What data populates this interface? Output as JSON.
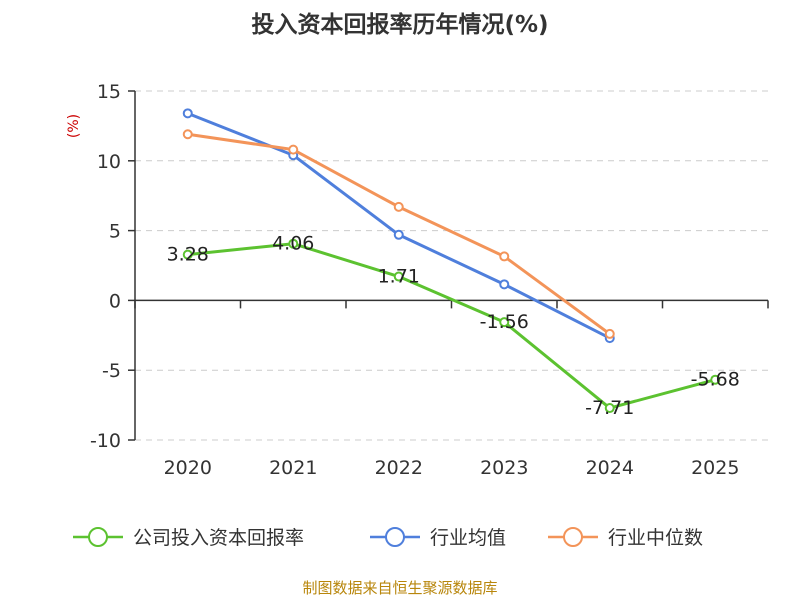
{
  "chart_data": {
    "type": "line",
    "title": "投入资本回报率历年情况(%)",
    "ylabel": "(%)",
    "xlabel": "",
    "categories": [
      "2020",
      "2021",
      "2022",
      "2023",
      "2024",
      "2025"
    ],
    "ylim": [
      -10,
      15
    ],
    "yticks": [
      15,
      10,
      5,
      0,
      -5,
      -10
    ],
    "grid": true,
    "legend_position": "bottom",
    "series": [
      {
        "name": "公司投入资本回报率",
        "color": "#5cc230",
        "values": [
          3.28,
          4.06,
          1.71,
          -1.56,
          -7.71,
          -5.68
        ],
        "labels": [
          "3.28",
          "4.06",
          "1.71",
          "-1.56",
          "-7.71",
          "-5.68"
        ]
      },
      {
        "name": "行业均值",
        "color": "#4f7fdc",
        "values": [
          13.4,
          10.4,
          4.7,
          1.15,
          -2.7,
          null
        ]
      },
      {
        "name": "行业中位数",
        "color": "#f39459",
        "values": [
          11.9,
          10.8,
          6.7,
          3.15,
          -2.4,
          null
        ]
      }
    ]
  },
  "source_text": "制图数据来自恒生聚源数据库"
}
